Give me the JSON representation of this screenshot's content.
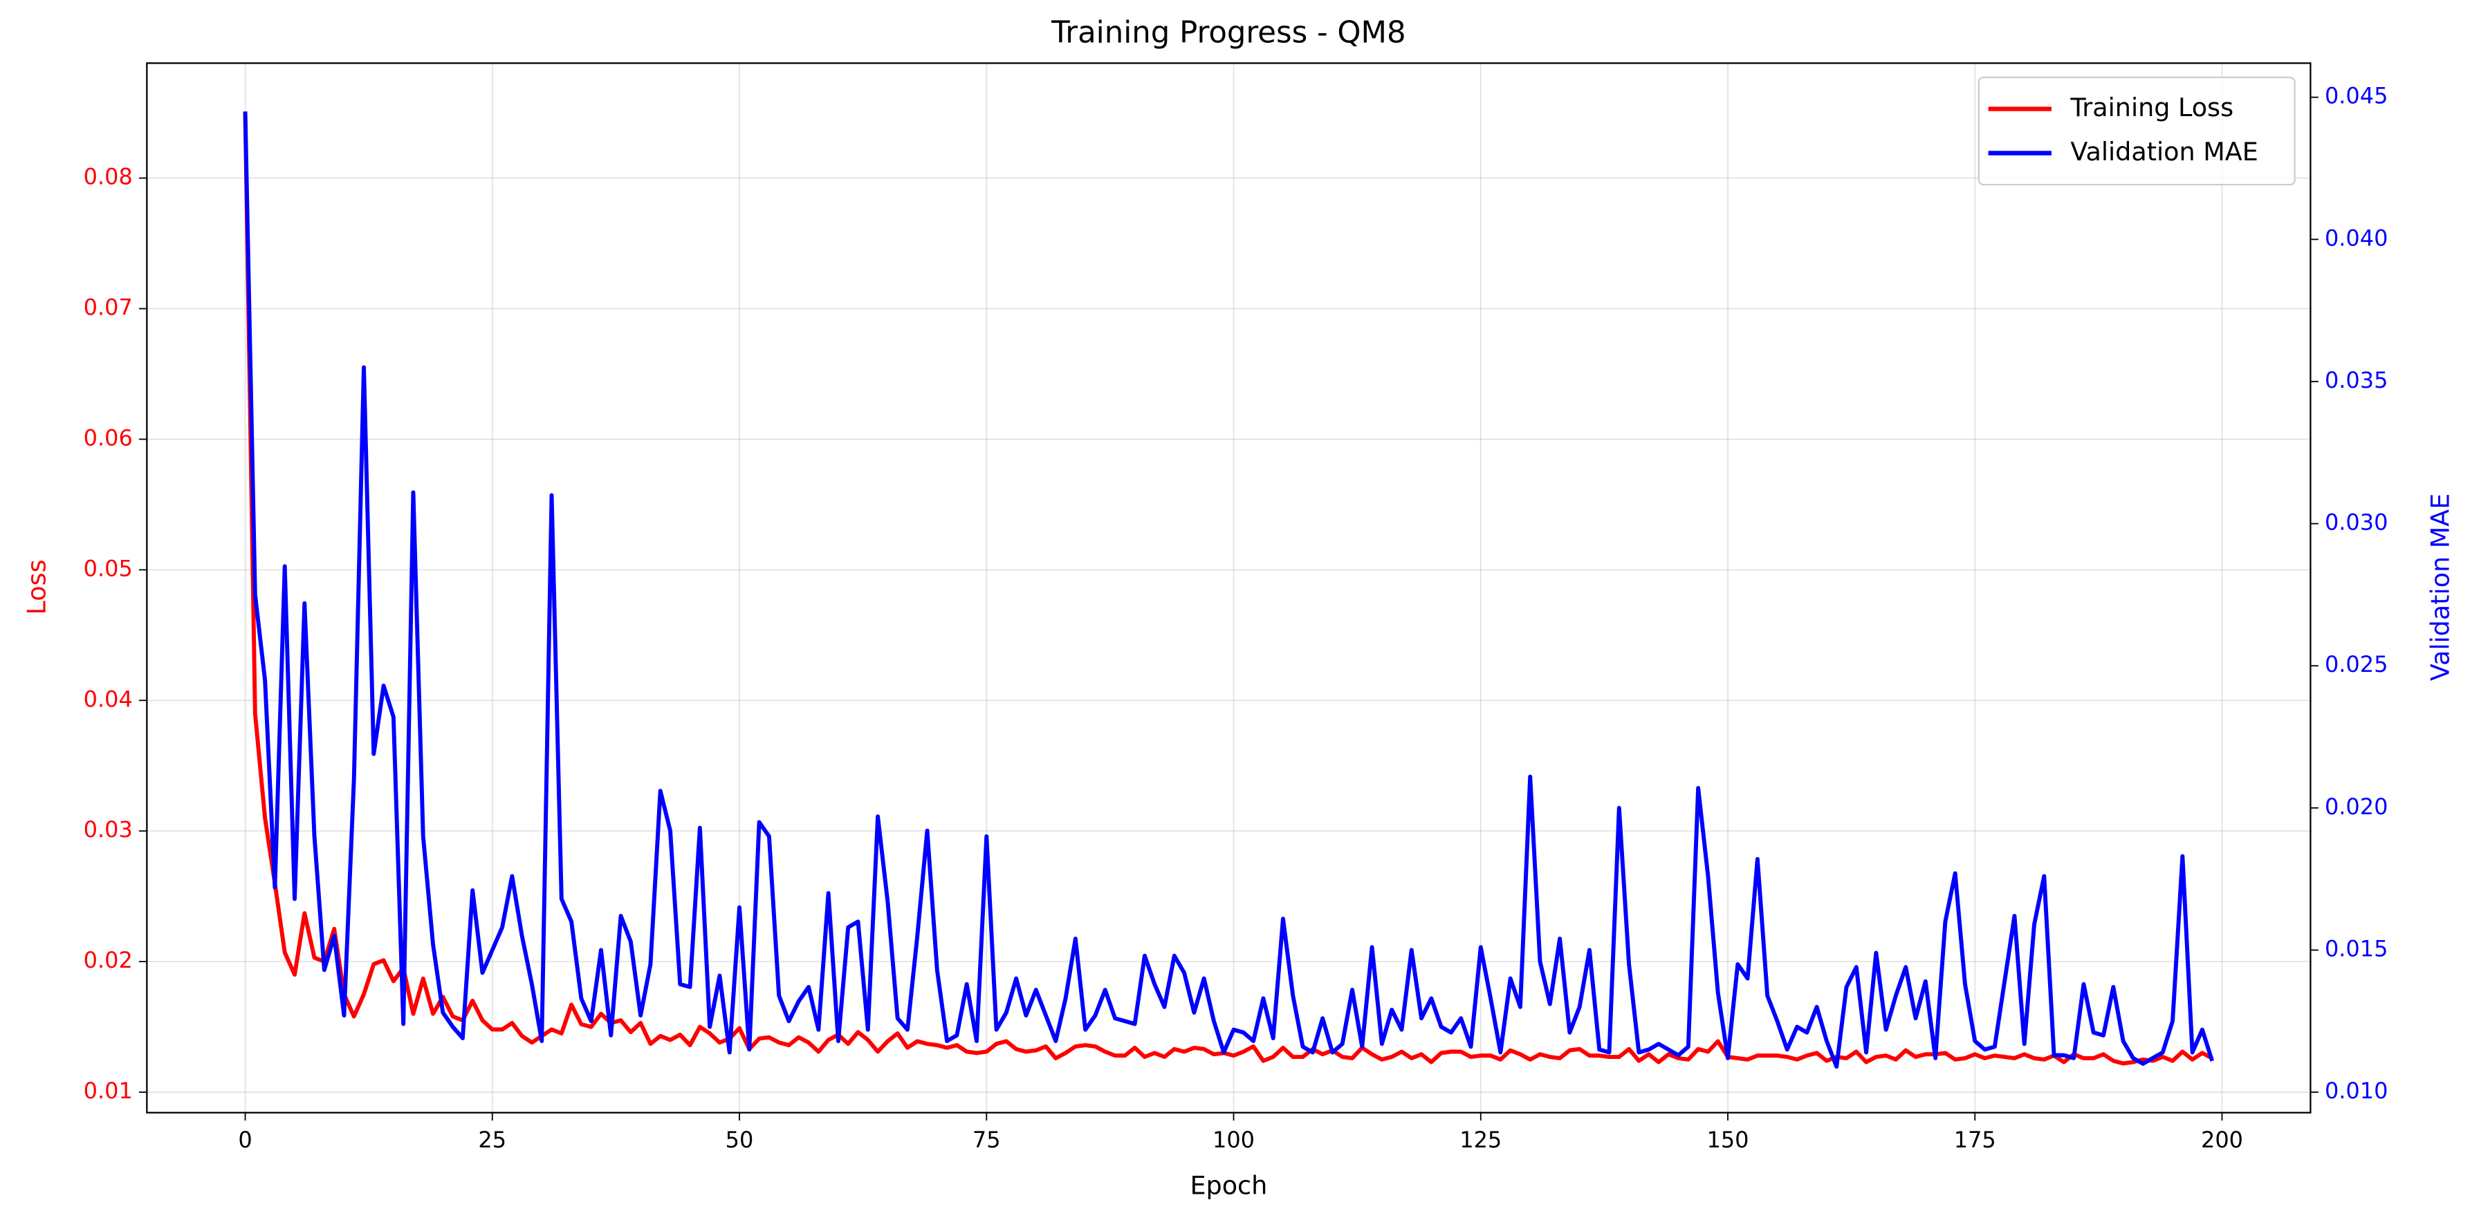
{
  "chart_data": {
    "type": "line",
    "title": "Training Progress - QM8",
    "xlabel": "Epoch",
    "ylabel": "Loss",
    "y2label": "Validation MAE",
    "xlim": [
      -9.95,
      208.95
    ],
    "xticks": [
      0,
      25,
      50,
      75,
      100,
      125,
      150,
      175,
      200
    ],
    "ylim": [
      0.00843,
      0.0888
    ],
    "yticks": [
      0.01,
      0.02,
      0.03,
      0.04,
      0.05,
      0.06,
      0.07,
      0.08
    ],
    "y2lim": [
      0.00928,
      0.0462
    ],
    "y2ticks": [
      {
        "value": 0.01,
        "label": "0.010"
      },
      0.015,
      {
        "value": 0.02,
        "label": "0.020"
      },
      0.025,
      {
        "value": 0.03,
        "label": "0.030"
      },
      0.035,
      {
        "value": 0.04,
        "label": "0.040"
      },
      0.045
    ],
    "grid": true,
    "legend": "upper right",
    "x": [
      0,
      1,
      2,
      3,
      4,
      5,
      6,
      7,
      8,
      9,
      10,
      11,
      12,
      13,
      14,
      15,
      16,
      17,
      18,
      19,
      20,
      21,
      22,
      23,
      24,
      25,
      26,
      27,
      28,
      29,
      30,
      31,
      32,
      33,
      34,
      35,
      36,
      37,
      38,
      39,
      40,
      41,
      42,
      43,
      44,
      45,
      46,
      47,
      48,
      49,
      50,
      51,
      52,
      53,
      54,
      55,
      56,
      57,
      58,
      59,
      60,
      61,
      62,
      63,
      64,
      65,
      66,
      67,
      68,
      69,
      70,
      71,
      72,
      73,
      74,
      75,
      76,
      77,
      78,
      79,
      80,
      81,
      82,
      83,
      84,
      85,
      86,
      87,
      88,
      89,
      90,
      91,
      92,
      93,
      94,
      95,
      96,
      97,
      98,
      99,
      100,
      101,
      102,
      103,
      104,
      105,
      106,
      107,
      108,
      109,
      110,
      111,
      112,
      113,
      114,
      115,
      116,
      117,
      118,
      119,
      120,
      121,
      122,
      123,
      124,
      125,
      126,
      127,
      128,
      129,
      130,
      131,
      132,
      133,
      134,
      135,
      136,
      137,
      138,
      139,
      140,
      141,
      142,
      143,
      144,
      145,
      146,
      147,
      148,
      149,
      150,
      151,
      152,
      153,
      154,
      155,
      156,
      157,
      158,
      159,
      160,
      161,
      162,
      163,
      164,
      165,
      166,
      167,
      168,
      169,
      170,
      171,
      172,
      173,
      174,
      175,
      176,
      177,
      178,
      179,
      180,
      181,
      182,
      183,
      184,
      185,
      186,
      187,
      188,
      189,
      190,
      191,
      192,
      193,
      194,
      195,
      196,
      197,
      198,
      199
    ],
    "series": [
      {
        "name": "Training Loss",
        "color": "#ff0000",
        "axis": "y",
        "values": [
          0.085,
          0.039,
          0.031,
          0.026,
          0.0207,
          0.019,
          0.0237,
          0.0203,
          0.02,
          0.0225,
          0.0175,
          0.0158,
          0.0175,
          0.0198,
          0.0201,
          0.0185,
          0.0195,
          0.016,
          0.0187,
          0.016,
          0.0173,
          0.0158,
          0.0155,
          0.017,
          0.0155,
          0.0148,
          0.0148,
          0.0153,
          0.0143,
          0.0138,
          0.0143,
          0.0148,
          0.0145,
          0.0167,
          0.0152,
          0.015,
          0.016,
          0.0153,
          0.0155,
          0.0146,
          0.0153,
          0.0137,
          0.0143,
          0.014,
          0.0144,
          0.0136,
          0.015,
          0.0145,
          0.0138,
          0.0141,
          0.0149,
          0.0133,
          0.0141,
          0.0142,
          0.0138,
          0.0136,
          0.0142,
          0.0138,
          0.0131,
          0.014,
          0.0144,
          0.0137,
          0.0146,
          0.014,
          0.0131,
          0.0139,
          0.0145,
          0.0134,
          0.0139,
          0.0137,
          0.0136,
          0.0134,
          0.0136,
          0.0131,
          0.013,
          0.0131,
          0.0137,
          0.0139,
          0.0133,
          0.0131,
          0.0132,
          0.0135,
          0.0126,
          0.013,
          0.0135,
          0.0136,
          0.0135,
          0.0131,
          0.0128,
          0.0128,
          0.0134,
          0.0127,
          0.013,
          0.0127,
          0.0133,
          0.0131,
          0.0134,
          0.0133,
          0.0129,
          0.013,
          0.0128,
          0.0131,
          0.0135,
          0.0124,
          0.0127,
          0.0134,
          0.0127,
          0.0127,
          0.0133,
          0.0129,
          0.0132,
          0.0127,
          0.0126,
          0.0134,
          0.0129,
          0.0125,
          0.0127,
          0.0131,
          0.0126,
          0.0129,
          0.0123,
          0.013,
          0.0131,
          0.0131,
          0.0127,
          0.0128,
          0.0128,
          0.0125,
          0.0132,
          0.0129,
          0.0125,
          0.0129,
          0.0127,
          0.0126,
          0.0132,
          0.0133,
          0.0128,
          0.0128,
          0.0127,
          0.0127,
          0.0133,
          0.0124,
          0.0129,
          0.0123,
          0.0129,
          0.0126,
          0.0125,
          0.0133,
          0.0131,
          0.0139,
          0.0127,
          0.0126,
          0.0125,
          0.0128,
          0.0128,
          0.0128,
          0.0127,
          0.0125,
          0.0128,
          0.013,
          0.0124,
          0.0127,
          0.0126,
          0.0131,
          0.0123,
          0.0127,
          0.0128,
          0.0125,
          0.0132,
          0.0127,
          0.0129,
          0.0129,
          0.013,
          0.0125,
          0.0126,
          0.0129,
          0.0126,
          0.0128,
          0.0127,
          0.0126,
          0.0129,
          0.0126,
          0.0125,
          0.0128,
          0.0123,
          0.0129,
          0.0126,
          0.0126,
          0.0129,
          0.0124,
          0.0122,
          0.0123,
          0.0125,
          0.0124,
          0.0127,
          0.0124,
          0.0131,
          0.0125,
          0.013,
          0.0126
        ]
      },
      {
        "name": "Validation MAE",
        "color": "#0000ff",
        "axis": "y2",
        "values": [
          0.0445,
          0.0275,
          0.0245,
          0.0172,
          0.0285,
          0.0168,
          0.0272,
          0.019,
          0.0143,
          0.0155,
          0.0127,
          0.021,
          0.0355,
          0.0219,
          0.0243,
          0.0232,
          0.0124,
          0.0311,
          0.019,
          0.0152,
          0.0128,
          0.0123,
          0.0119,
          0.0171,
          0.0142,
          0.015,
          0.0158,
          0.0176,
          0.0155,
          0.0138,
          0.0118,
          0.031,
          0.0168,
          0.016,
          0.0133,
          0.0125,
          0.015,
          0.012,
          0.0162,
          0.0153,
          0.0127,
          0.0145,
          0.0206,
          0.0192,
          0.0138,
          0.0137,
          0.0193,
          0.0123,
          0.0141,
          0.0114,
          0.0165,
          0.0115,
          0.0195,
          0.019,
          0.0134,
          0.0125,
          0.0132,
          0.0137,
          0.0122,
          0.017,
          0.0118,
          0.0158,
          0.016,
          0.0122,
          0.0197,
          0.0167,
          0.0126,
          0.0122,
          0.0155,
          0.0192,
          0.0143,
          0.0118,
          0.012,
          0.0138,
          0.0118,
          0.019,
          0.0122,
          0.0128,
          0.014,
          0.0127,
          0.0136,
          0.0127,
          0.0118,
          0.0133,
          0.0154,
          0.0122,
          0.0127,
          0.0136,
          0.0126,
          0.0125,
          0.0124,
          0.0148,
          0.0138,
          0.013,
          0.0148,
          0.0142,
          0.0128,
          0.014,
          0.0125,
          0.0114,
          0.0122,
          0.0121,
          0.0118,
          0.0133,
          0.0119,
          0.0161,
          0.0134,
          0.0116,
          0.0114,
          0.0126,
          0.0114,
          0.0117,
          0.0136,
          0.0116,
          0.0151,
          0.0117,
          0.0129,
          0.0122,
          0.015,
          0.0126,
          0.0133,
          0.0123,
          0.0121,
          0.0126,
          0.0116,
          0.0151,
          0.0133,
          0.0114,
          0.014,
          0.013,
          0.0211,
          0.0146,
          0.0131,
          0.0154,
          0.0121,
          0.013,
          0.015,
          0.0115,
          0.0114,
          0.02,
          0.0145,
          0.0114,
          0.0115,
          0.0117,
          0.0115,
          0.0113,
          0.0116,
          0.0207,
          0.0176,
          0.0135,
          0.0112,
          0.0145,
          0.014,
          0.0182,
          0.0134,
          0.0125,
          0.0115,
          0.0123,
          0.0121,
          0.013,
          0.0118,
          0.0109,
          0.0137,
          0.0144,
          0.0114,
          0.0149,
          0.0122,
          0.0134,
          0.0144,
          0.0126,
          0.0139,
          0.0112,
          0.016,
          0.0177,
          0.0138,
          0.0118,
          0.0115,
          0.0116,
          0.0139,
          0.0162,
          0.0117,
          0.0159,
          0.0176,
          0.0113,
          0.0113,
          0.0112,
          0.0138,
          0.0121,
          0.012,
          0.0137,
          0.0118,
          0.0112,
          0.011,
          0.0112,
          0.0114,
          0.0125,
          0.0183,
          0.0114,
          0.0122,
          0.0111
        ]
      }
    ]
  }
}
